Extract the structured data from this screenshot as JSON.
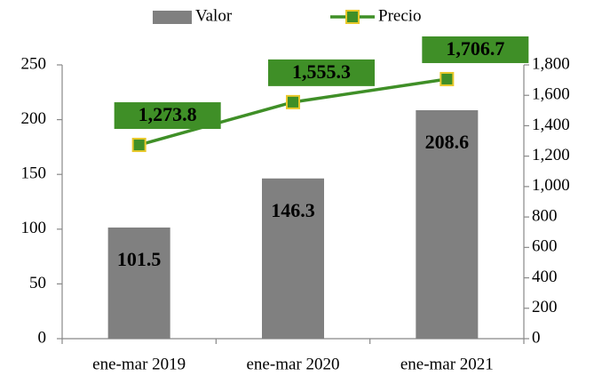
{
  "chart_data": {
    "type": "bar",
    "categories": [
      "ene-mar 2019",
      "ene-mar 2020",
      "ene-mar 2021"
    ],
    "series": [
      {
        "name": "Valor",
        "type": "bar",
        "color": "#808080",
        "values": [
          101.5,
          146.3,
          208.6
        ]
      },
      {
        "name": "Precio",
        "type": "line",
        "axis": "y2",
        "color": "#3f8f27",
        "marker_edge": "#e8c82a",
        "values": [
          1273.8,
          1555.3,
          1706.7
        ],
        "value_labels": [
          "1,273.8",
          "1,555.3",
          "1,706.7"
        ]
      }
    ],
    "ylim": [
      0,
      250
    ],
    "yticks": [
      0,
      50,
      100,
      150,
      200,
      250
    ],
    "y2lim": [
      0,
      1800
    ],
    "y2ticks": [
      0,
      200,
      400,
      600,
      800,
      {
        "value": 1000,
        "label": "1,000"
      },
      {
        "value": 1200,
        "label": "1,200"
      },
      {
        "value": 1400,
        "label": "1,400"
      },
      {
        "value": 1600,
        "label": "1,600"
      },
      {
        "value": 1800,
        "label": "1,800"
      }
    ],
    "legend": "top"
  }
}
